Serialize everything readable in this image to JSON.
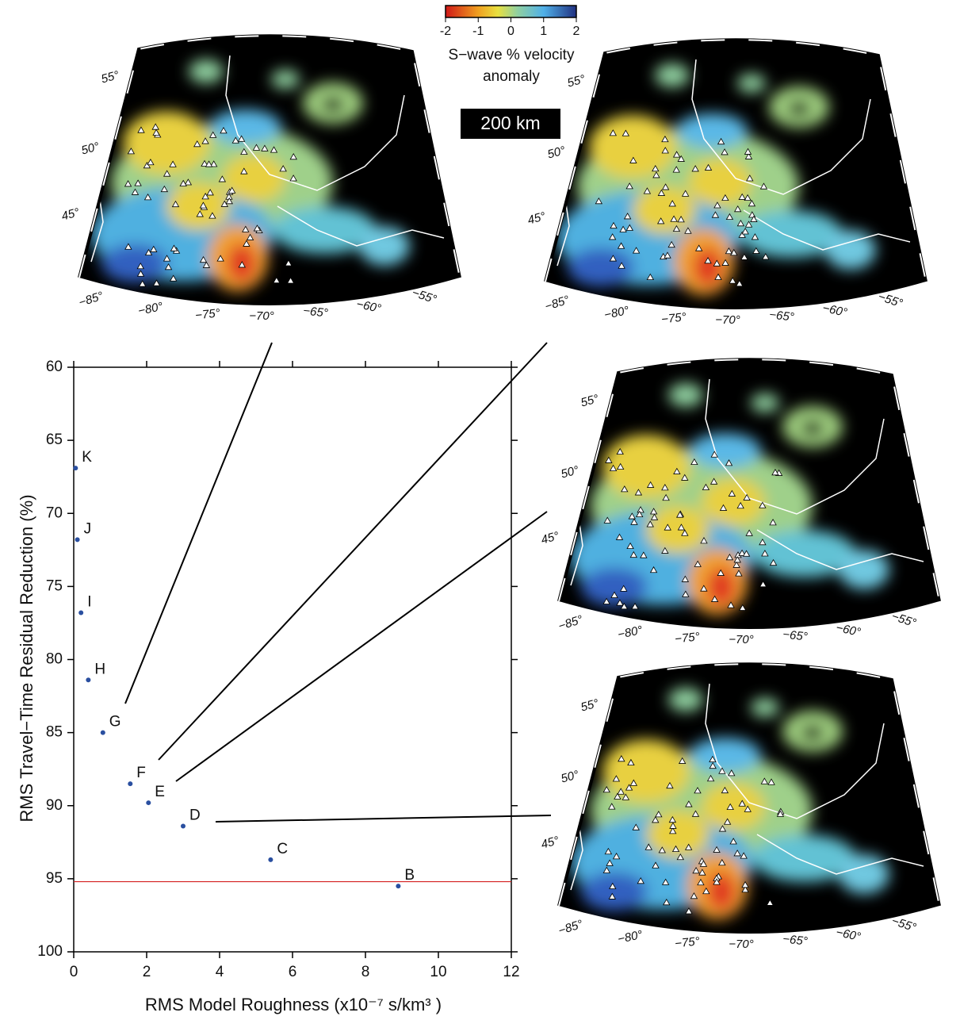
{
  "chart_data": {
    "type": "scatter",
    "xlabel": "RMS Model Roughness (x10⁻⁷ s/km³ )",
    "ylabel": "RMS Travel−Time Residual Reduction (%)",
    "point_labels": [
      "K",
      "J",
      "I",
      "H",
      "G",
      "F",
      "E",
      "D",
      "C",
      "B"
    ],
    "x": [
      0.05,
      0.1,
      0.2,
      0.4,
      0.8,
      1.55,
      2.05,
      3.0,
      5.4,
      8.9
    ],
    "values": [
      66.9,
      71.8,
      76.8,
      81.4,
      85.0,
      88.5,
      89.8,
      91.4,
      93.7,
      95.5
    ],
    "color": "#2a4fa0",
    "xlim": [
      0,
      12
    ],
    "xticks": [
      0,
      2,
      4,
      6,
      8,
      10,
      12
    ],
    "ylim": [
      60,
      100
    ],
    "yticks": [
      60,
      65,
      70,
      75,
      80,
      85,
      90,
      95,
      100
    ],
    "y_inverted": true,
    "hline": 95.2,
    "hline_color": "#d42020"
  },
  "colorbar": {
    "clim": [
      -2,
      2
    ],
    "ticks": [
      -2,
      -1,
      0,
      1,
      2
    ],
    "label": [
      "S−wave % velocity",
      "anomaly"
    ]
  },
  "depth_label": "200 km",
  "map_labels": {
    "lat": [
      "55°",
      "50°",
      "45°"
    ],
    "lon": [
      "−85°",
      "−80°",
      "−75°",
      "−70°",
      "−65°",
      "−60°",
      "−55°"
    ]
  }
}
